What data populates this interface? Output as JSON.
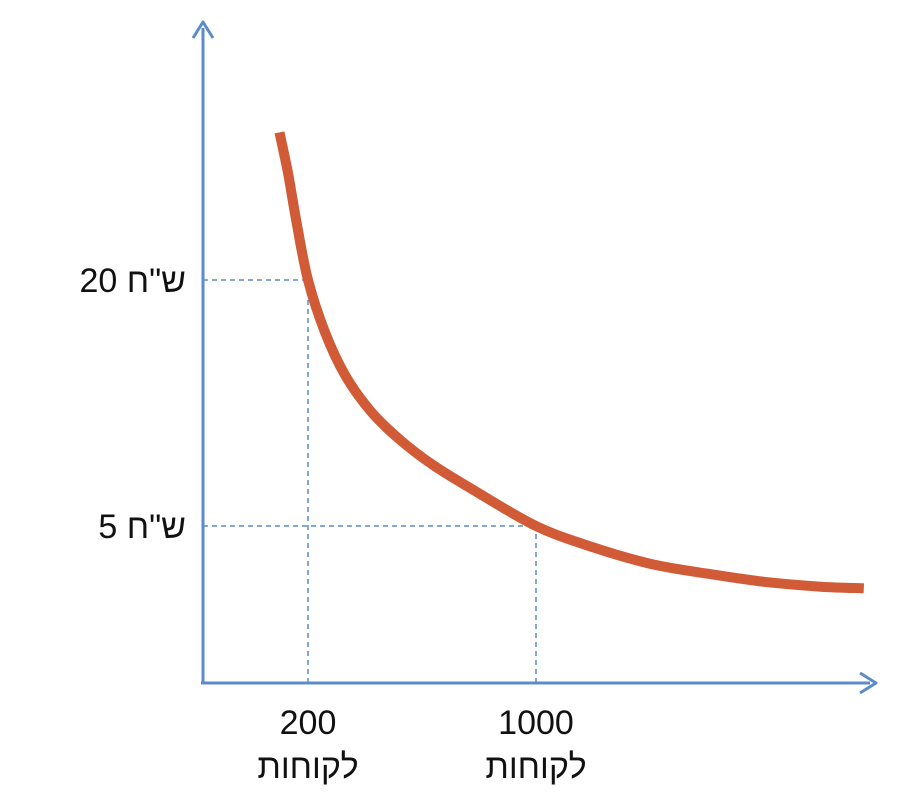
{
  "chart_data": {
    "type": "line",
    "title": "",
    "xlabel": "",
    "ylabel": "",
    "x_annotations": [
      {
        "x": 200,
        "label_value": "200",
        "label_unit": "לקוחות"
      },
      {
        "x": 1000,
        "label_value": "1000",
        "label_unit": "לקוחות"
      }
    ],
    "y_annotations": [
      {
        "y": 20,
        "label": "20 ש\"ח"
      },
      {
        "y": 5,
        "label": "5 ש\"ח"
      }
    ],
    "series": [
      {
        "x": [
          100,
          130,
          160,
          200,
          260,
          330,
          420,
          520,
          640,
          780,
          1000,
          1200,
          1400,
          1600,
          1800,
          2000,
          2150
        ],
        "y": [
          29,
          26.5,
          23.5,
          20,
          16.8,
          14.2,
          12,
          10.3,
          8.7,
          7.2,
          5,
          3.7,
          2.7,
          2.1,
          1.6,
          1.3,
          1.2
        ]
      }
    ],
    "colors": {
      "axis": "#5B8CC9",
      "curve": "#D05B36",
      "guide": "#5B8CC9"
    }
  }
}
